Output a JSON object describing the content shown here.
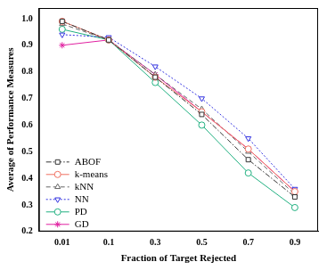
{
  "chart_data": {
    "type": "line",
    "x_label": "Fraction of Target Rejected",
    "y_label": "Average of Performance Measures",
    "categories": [
      "0.01",
      "0.1",
      "0.3",
      "0.5",
      "0.7",
      "0.9"
    ],
    "series": [
      {
        "name": "ABOF",
        "color": "#333333",
        "marker": "square",
        "line_style": "dashdot",
        "values": [
          0.99,
          0.92,
          0.78,
          0.64,
          0.47,
          0.33
        ]
      },
      {
        "name": "k-means",
        "color": "#f07060",
        "marker": "circle",
        "line_style": "solid",
        "values": [
          0.99,
          0.92,
          0.78,
          0.65,
          0.51,
          0.35
        ]
      },
      {
        "name": "kNN",
        "color": "#666666",
        "marker": "triangle-up",
        "line_style": "dashed",
        "values": [
          0.98,
          0.92,
          0.79,
          0.66,
          0.5,
          0.34
        ]
      },
      {
        "name": "NN",
        "color": "#3030e0",
        "marker": "triangle-down",
        "line_style": "dotted",
        "values": [
          0.94,
          0.93,
          0.82,
          0.7,
          0.55,
          0.36
        ]
      },
      {
        "name": "PD",
        "color": "#20b080",
        "marker": "circle",
        "line_style": "solid",
        "values": [
          0.96,
          0.92,
          0.76,
          0.6,
          0.42,
          0.29
        ]
      },
      {
        "name": "GD",
        "color": "#e020a0",
        "marker": "star",
        "line_style": "solid",
        "values": [
          0.9,
          0.92,
          0.79,
          0.65,
          0.51,
          0.35
        ]
      }
    ],
    "ylim": [
      0.2,
      1.04
    ],
    "yticks": [
      0.2,
      0.3,
      0.4,
      0.5,
      0.6,
      0.7,
      0.8,
      0.9,
      {
        "value": 1,
        "label": "1.0"
      }
    ],
    "grid": false,
    "legend": "lower left"
  }
}
